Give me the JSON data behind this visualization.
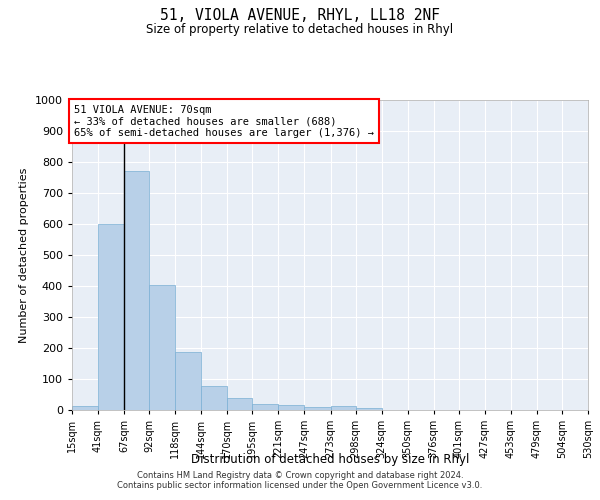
{
  "title": "51, VIOLA AVENUE, RHYL, LL18 2NF",
  "subtitle": "Size of property relative to detached houses in Rhyl",
  "xlabel": "Distribution of detached houses by size in Rhyl",
  "ylabel": "Number of detached properties",
  "bar_color": "#b8d0e8",
  "bar_edge_color": "#7aafd4",
  "background_color": "#e8eef6",
  "grid_color": "#ffffff",
  "bin_edges": [
    15,
    41,
    67,
    92,
    118,
    144,
    170,
    195,
    221,
    247,
    273,
    298,
    324,
    350,
    376,
    401,
    427,
    453,
    479,
    504,
    530
  ],
  "bin_labels": [
    "15sqm",
    "41sqm",
    "67sqm",
    "92sqm",
    "118sqm",
    "144sqm",
    "170sqm",
    "195sqm",
    "221sqm",
    "247sqm",
    "273sqm",
    "298sqm",
    "324sqm",
    "350sqm",
    "376sqm",
    "401sqm",
    "427sqm",
    "453sqm",
    "479sqm",
    "504sqm",
    "530sqm"
  ],
  "bar_heights": [
    14,
    600,
    770,
    403,
    188,
    77,
    38,
    18,
    15,
    10,
    14,
    7,
    0,
    0,
    0,
    0,
    0,
    0,
    0,
    0
  ],
  "ylim": [
    0,
    1000
  ],
  "yticks": [
    0,
    100,
    200,
    300,
    400,
    500,
    600,
    700,
    800,
    900,
    1000
  ],
  "property_line_x": 67,
  "annotation_title": "51 VIOLA AVENUE: 70sqm",
  "annotation_line1": "← 33% of detached houses are smaller (688)",
  "annotation_line2": "65% of semi-detached houses are larger (1,376) →",
  "footer_line1": "Contains HM Land Registry data © Crown copyright and database right 2024.",
  "footer_line2": "Contains public sector information licensed under the Open Government Licence v3.0."
}
